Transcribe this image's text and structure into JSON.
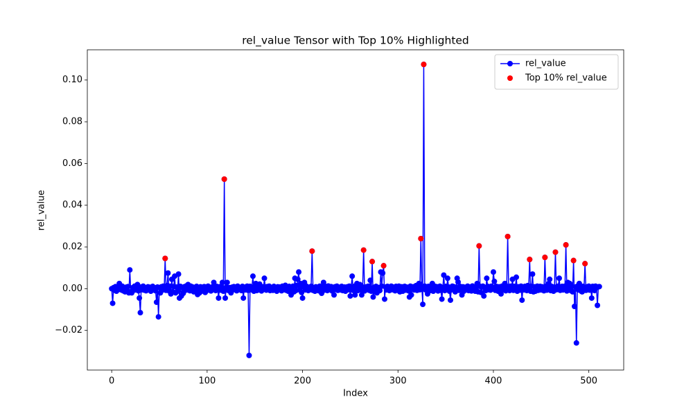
{
  "chart_data": {
    "type": "line",
    "title": "rel_value Tensor with Top 10% Highlighted",
    "xlabel": "Index",
    "ylabel": "rel_value",
    "xlim": [
      -25.55,
      536.55
    ],
    "ylim": [
      -0.039,
      0.1145
    ],
    "xticks": [
      0,
      100,
      200,
      300,
      400,
      500
    ],
    "yticks": [
      {
        "value": -0.02,
        "label": "−0.02"
      },
      {
        "value": 0,
        "label": "0.00"
      },
      {
        "value": 0.02,
        "label": "0.02"
      },
      {
        "value": 0.04,
        "label": "0.04"
      },
      {
        "value": 0.06,
        "label": "0.06"
      },
      {
        "value": 0.08,
        "label": "0.08"
      },
      {
        "value": 0.1,
        "label": "0.10"
      }
    ],
    "legend": "upper right",
    "series": [
      {
        "name": "rel_value",
        "color": "#0000ff",
        "style": "line-marker",
        "values": [
          0,
          -0.007,
          0.0005,
          -0.0008,
          0.001,
          -0.0012,
          0.0006,
          -0.0004,
          0.0025,
          0.0008,
          -0.0006,
          0.0012,
          -0.001,
          0.0004,
          -0.0015,
          0.0007,
          -0.0005,
          0.001,
          -0.002,
          0.009,
          -0.0015,
          -0.002,
          0.0005,
          -0.0008,
          0.0012,
          -0.0006,
          0.0004,
          0.002,
          -0.001,
          -0.0045,
          -0.0115,
          0.0008,
          -0.0005,
          0.0012,
          -0.0007,
          0.0003,
          -0.001,
          0.0006,
          0.0009,
          -0.0004,
          0.0007,
          -0.0012,
          0.0005,
          0.0011,
          -0.0006,
          0.0004,
          -0.001,
          -0.0065,
          0.0008,
          -0.0135,
          0.0005,
          -0.002,
          0.0009,
          -0.0007,
          0.0012,
          -0.0005,
          0.0145,
          -0.0008,
          0.0015,
          0.0075,
          -0.001,
          0.0012,
          -0.0025,
          0.0045,
          -0.0015,
          0.001,
          0.006,
          -0.002,
          0.0008,
          -0.0012,
          0.007,
          -0.0045,
          0.0011,
          -0.0035,
          0.0006,
          -0.0022,
          0.0009,
          -0.0008,
          0.0013,
          -0.0006,
          0.002,
          0.0005,
          -0.001,
          0.0012,
          -0.0004,
          0.0008,
          -0.0015,
          0.0006,
          -0.0009,
          0.0011,
          -0.0028,
          0.0004,
          -0.002,
          0.0009,
          -0.0012,
          0.0007,
          -0.0005,
          0.001,
          -0.0018,
          0.0005,
          -0.0008,
          0.0012,
          -0.0006,
          0.0004,
          -0.0011,
          0.0008,
          -0.0005,
          0.003,
          0.0006,
          -0.0009,
          0.0011,
          0.0004,
          -0.0045,
          0.0009,
          -0.0007,
          0.0012,
          0.003,
          -0.0012,
          0.0525,
          -0.0045,
          0.0006,
          0.003,
          -0.0008,
          0.0005,
          -0.0012,
          -0.002,
          0.0007,
          -0.0006,
          0.001,
          -0.0004,
          0.0008,
          -0.001,
          0.0012,
          -0.0005,
          0.0006,
          0.0004,
          -0.0009,
          0.0011,
          -0.0045,
          0.0007,
          -0.0006,
          0.0009,
          0.0012,
          -0.0008,
          -0.032,
          0.0011,
          -0.0005,
          0.0008,
          0.006,
          -0.0012,
          0.0007,
          0.0025,
          -0.0009,
          0.0012,
          -0.0006,
          0.0022,
          0.0005,
          -0.0011,
          0.0009,
          -0.0004,
          0.005,
          0.0008,
          -0.0007,
          0.001,
          -0.0005,
          0.0012,
          -0.0009,
          0.0006,
          0.0004,
          -0.0008,
          0.0011,
          0.0007,
          -0.0006,
          -0.0012,
          0.0009,
          -0.0004,
          0.0008,
          0.0005,
          -0.001,
          0.0012,
          -0.0005,
          0.0009,
          0.0016,
          -0.0008,
          0.0006,
          -0.0012,
          0.0011,
          0.0004,
          -0.003,
          -0.0007,
          0.0012,
          -0.0015,
          0.005,
          -0.0009,
          0.0015,
          0.0045,
          0.008,
          -0.0006,
          0.0025,
          -0.0018,
          -0.0045,
          0.0008,
          0.003,
          -0.0006,
          0.0012,
          0.0004,
          -0.0009,
          0.0007,
          -0.0005,
          0.0011,
          0.018,
          -0.0008,
          0.0006,
          -0.0012,
          0.0009,
          -0.0004,
          0.0005,
          -0.001,
          0.0012,
          -0.0006,
          -0.0022,
          0.0008,
          0.003,
          -0.0007,
          0.0011,
          0.0005,
          -0.0009,
          0.0013,
          -0.0005,
          0.0007,
          0.001,
          -0.0011,
          0.0006,
          -0.003,
          0.0009,
          -0.0004,
          0.0012,
          -0.0008,
          0.0005,
          0.0007,
          -0.0006,
          0.0011,
          -0.0009,
          0.0004,
          0.0008,
          -0.0012,
          0.0006,
          0.0009,
          -0.0005,
          0.0012,
          -0.0035,
          0.0007,
          0.006,
          -0.0008,
          0.0011,
          -0.003,
          0.0005,
          0.0025,
          -0.0009,
          0.0012,
          0.002,
          -0.0006,
          -0.003,
          0.0008,
          0.0185,
          -0.0011,
          0.0006,
          0.0009,
          -0.0005,
          0.0012,
          -0.0008,
          0.004,
          -0.0012,
          0.013,
          -0.004,
          0.0007,
          -0.0015,
          0.0011,
          -0.002,
          0.0006,
          0.0005,
          -0.0009,
          0.008,
          0.0012,
          0.0075,
          0.011,
          -0.005,
          0.0008,
          -0.0006,
          0.0011,
          0.0004,
          -0.0009,
          0.0007,
          0.0012,
          -0.0005,
          0.0008,
          0.0006,
          -0.001,
          0.0011,
          0.0005,
          -0.0008,
          0.0012,
          -0.0015,
          0.0006,
          0.0009,
          -0.0012,
          0.0004,
          0.0011,
          -0.0007,
          0.0008,
          0.0006,
          -0.001,
          -0.004,
          0.0012,
          -0.003,
          0.0005,
          0.0009,
          -0.0006,
          0.0011,
          0.0015,
          -0.0008,
          0.0012,
          0.0025,
          -0.0005,
          0.024,
          0.0008,
          -0.0075,
          0.1075,
          0.0012,
          -0.0006,
          0.0009,
          -0.0025,
          0.0011,
          0.0005,
          -0.0009,
          0.0007,
          0.0025,
          -0.0012,
          0.0006,
          0.0011,
          -0.0005,
          0.0009,
          -0.0011,
          0.0007,
          0.0012,
          -0.0008,
          -0.005,
          0.0006,
          0.0065,
          -0.0009,
          0.0011,
          -0.0006,
          0.005,
          0.0008,
          -0.0012,
          -0.0055,
          0.0007,
          0.0012,
          -0.0005,
          0.0009,
          -0.0015,
          0.0006,
          0.005,
          0.0032,
          -0.0008,
          0.0011,
          0.0005,
          -0.003,
          0.0009,
          -0.0012,
          0.0007,
          0.0004,
          -0.0006,
          0.0012,
          -0.0009,
          0.0008,
          0.0005,
          -0.0011,
          0.0013,
          -0.0004,
          0.0007,
          -0.0012,
          0.0009,
          0.0025,
          -0.0015,
          0.0205,
          0.0011,
          -0.0018,
          0.0008,
          0.0012,
          -0.0035,
          0.0006,
          -0.0009,
          0.005,
          0.0011,
          -0.0005,
          0.0009,
          -0.0007,
          0.0012,
          0.0006,
          0.008,
          0.0035,
          -0.0008,
          0.0011,
          0.0006,
          -0.0012,
          0.0009,
          0.0004,
          -0.0025,
          0.0012,
          -0.0006,
          0.0008,
          0.0025,
          -0.001,
          0.0011,
          0.025,
          0.0007,
          -0.0009,
          0.0012,
          0.0005,
          0.0045,
          -0.0008,
          0.0011,
          0.0006,
          0.0055,
          -0.0012,
          0.0009,
          0.0004,
          -0.0007,
          0.0012,
          -0.0055,
          0.0008,
          -0.0006,
          0.0011,
          0.0005,
          -0.0009,
          0.0015,
          0.0007,
          0.014,
          -0.0012,
          0.0011,
          0.007,
          -0.0015,
          0.0009,
          -0.0012,
          0.0006,
          0.0012,
          -0.0008,
          0.0005,
          0.0011,
          -0.0006,
          0.0009,
          0.0004,
          -0.001,
          0.015,
          0.0012,
          -0.0007,
          0.0008,
          0.0025,
          0.0045,
          -0.0009,
          0.0011,
          0.0006,
          -0.0012,
          0.0008,
          0.0175,
          -0.0005,
          0.0009,
          0.0012,
          0.005,
          -0.0008,
          0.0006,
          0.0011,
          -0.0006,
          0.0009,
          0.0012,
          0.021,
          -0.0011,
          0.003,
          0.0007,
          0.0025,
          -0.0009,
          0.0011,
          -0.0015,
          0.0135,
          -0.0085,
          0.0008,
          -0.026,
          0.0012,
          -0.0006,
          0.0025,
          0.0009,
          -0.0012,
          -0.0015,
          0.0011,
          0.0006,
          0.012,
          -0.0008,
          0.0009,
          -0.0005,
          0.0012,
          -0.0007,
          0.0008,
          -0.0045,
          0.0011,
          0.0006,
          -0.0009,
          0.0012,
          0.0005,
          -0.008,
          0.0009,
          0.001
        ]
      },
      {
        "name": "Top 10% rel_value",
        "color": "#ff0000",
        "style": "marker",
        "x": [
          56,
          118,
          210,
          264,
          273,
          285,
          324,
          327,
          385,
          415,
          438,
          454,
          465,
          476,
          484,
          496
        ],
        "values": [
          0.0145,
          0.0525,
          0.018,
          0.0185,
          0.013,
          0.011,
          0.024,
          0.1075,
          0.0205,
          0.025,
          0.014,
          0.015,
          0.0175,
          0.021,
          0.0135,
          0.012
        ]
      }
    ]
  }
}
